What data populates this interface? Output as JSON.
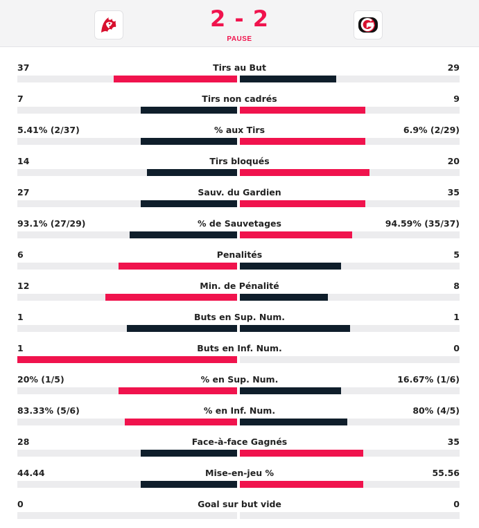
{
  "header": {
    "score": "2 - 2",
    "period": "PAUSE",
    "home_logo_icon": "lion-logo-icon",
    "away_logo_icon": "fribourg-gotteron-logo-icon"
  },
  "colors": {
    "lead": "#f0134d",
    "trail": "#0f1e2b",
    "track": "#ececee"
  },
  "stats": [
    {
      "label": "Tirs au But",
      "home": "37",
      "away": "29",
      "home_share": 0.56,
      "away_share": 0.44,
      "home_lead": true
    },
    {
      "label": "Tirs non cadrés",
      "home": "7",
      "away": "9",
      "home_share": 0.44,
      "away_share": 0.57,
      "home_lead": false
    },
    {
      "label": "% aux Tirs",
      "home": "5.41% (2/37)",
      "away": "6.9% (2/29)",
      "home_share": 0.44,
      "away_share": 0.57,
      "home_lead": false
    },
    {
      "label": "Tirs bloqués",
      "home": "14",
      "away": "20",
      "home_share": 0.41,
      "away_share": 0.59,
      "home_lead": false
    },
    {
      "label": "Sauv. du Gardien",
      "home": "27",
      "away": "35",
      "home_share": 0.44,
      "away_share": 0.57,
      "home_lead": false
    },
    {
      "label": "% de Sauvetages",
      "home": "93.1% (27/29)",
      "away": "94.59% (35/37)",
      "home_share": 0.49,
      "away_share": 0.51,
      "home_lead": false
    },
    {
      "label": "Penalités",
      "home": "6",
      "away": "5",
      "home_share": 0.54,
      "away_share": 0.46,
      "home_lead": true
    },
    {
      "label": "Min. de Pénalité",
      "home": "12",
      "away": "8",
      "home_share": 0.6,
      "away_share": 0.4,
      "home_lead": true
    },
    {
      "label": "Buts en Sup. Num.",
      "home": "1",
      "away": "1",
      "home_share": 0.5,
      "away_share": 0.5,
      "home_lead": false,
      "even": true
    },
    {
      "label": "Buts en Inf. Num.",
      "home": "1",
      "away": "0",
      "home_share": 1.0,
      "away_share": 0.0,
      "home_lead": true
    },
    {
      "label": "% en Sup. Num.",
      "home": "20% (1/5)",
      "away": "16.67% (1/6)",
      "home_share": 0.54,
      "away_share": 0.46,
      "home_lead": true
    },
    {
      "label": "% en Inf. Num.",
      "home": "83.33% (5/6)",
      "away": "80% (4/5)",
      "home_share": 0.51,
      "away_share": 0.49,
      "home_lead": true
    },
    {
      "label": "Face-à-face Gagnés",
      "home": "28",
      "away": "35",
      "home_share": 0.44,
      "away_share": 0.56,
      "home_lead": false
    },
    {
      "label": "Mise-en-jeu %",
      "home": "44.44",
      "away": "55.56",
      "home_share": 0.44,
      "away_share": 0.56,
      "home_lead": false
    },
    {
      "label": "Goal sur but vide",
      "home": "0",
      "away": "0",
      "home_share": 0.0,
      "away_share": 0.0,
      "home_lead": false
    }
  ]
}
